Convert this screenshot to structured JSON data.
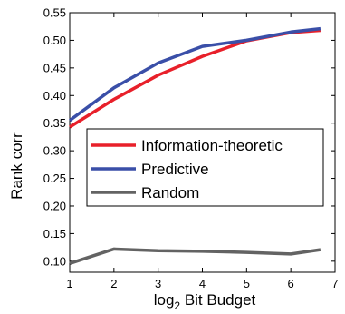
{
  "chart_data": {
    "type": "line",
    "title": "",
    "xlabel": "log2 Bit Budget",
    "xlabel_base": "log",
    "xlabel_sub": "2",
    "xlabel_rest": " Bit Budget",
    "ylabel": "Rank corr",
    "xlim": [
      1,
      7
    ],
    "ylim": [
      0.08,
      0.55
    ],
    "xticks": [
      1,
      2,
      3,
      4,
      5,
      6,
      7
    ],
    "yticks": [
      0.1,
      0.15,
      0.2,
      0.25,
      0.3,
      0.35,
      0.4,
      0.45,
      0.5,
      0.55
    ],
    "ytick_labels": [
      "0.10",
      "0.15",
      "0.20",
      "0.25",
      "0.30",
      "0.35",
      "0.40",
      "0.45",
      "0.50",
      "0.55"
    ],
    "grid": false,
    "legend_position": "middle",
    "x": [
      1,
      2,
      3,
      4,
      5,
      6,
      6.67
    ],
    "series": [
      {
        "name": "Information-theoretic",
        "color": "#e8202a",
        "values": [
          0.343,
          0.393,
          0.437,
          0.471,
          0.499,
          0.514,
          0.518
        ]
      },
      {
        "name": "Predictive",
        "color": "#3a4fa8",
        "values": [
          0.355,
          0.414,
          0.459,
          0.489,
          0.5,
          0.515,
          0.521
        ]
      },
      {
        "name": "Random",
        "color": "#636363",
        "values": [
          0.096,
          0.122,
          0.119,
          0.118,
          0.116,
          0.113,
          0.121
        ]
      }
    ]
  }
}
